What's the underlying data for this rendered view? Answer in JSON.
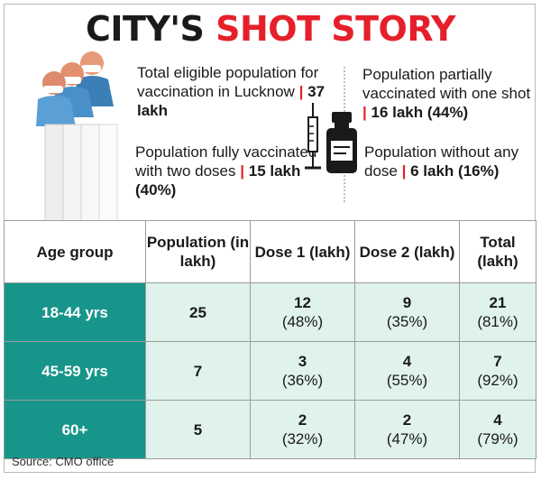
{
  "title": {
    "part1": "CITY'S ",
    "part2": "SHOT STORY"
  },
  "facts": {
    "eligible": {
      "text": "Total eligible population for vaccination in Lucknow",
      "value": "37 lakh"
    },
    "fully": {
      "text": "Population fully vaccinated with two doses",
      "value": "15 lakh (40%)"
    },
    "partial": {
      "text": "Population partially vaccinated with one shot",
      "value": "16 lakh (44%)"
    },
    "none": {
      "text": "Population without any dose",
      "value": "6 lakh (16%)"
    }
  },
  "table": {
    "headers": [
      "Age group",
      "Population (in lakh)",
      "Dose 1 (lakh)",
      "Dose 2 (lakh)",
      "Total (lakh)"
    ],
    "rows": [
      {
        "age": "18-44 yrs",
        "population": "25",
        "dose1": "12",
        "dose1_pct": "(48%)",
        "dose2": "9",
        "dose2_pct": "(35%)",
        "total": "21",
        "total_pct": "(81%)"
      },
      {
        "age": "45-59 yrs",
        "population": "7",
        "dose1": "3",
        "dose1_pct": "(36%)",
        "dose2": "4",
        "dose2_pct": "(55%)",
        "total": "7",
        "total_pct": "(92%)"
      },
      {
        "age": "60+",
        "population": "5",
        "dose1": "2",
        "dose1_pct": "(32%)",
        "dose2": "2",
        "dose2_pct": "(47%)",
        "total": "4",
        "total_pct": "(79%)"
      }
    ]
  },
  "source": "Source: CMO office",
  "colors": {
    "accent_red": "#e5202a",
    "teal": "#17958a",
    "light_teal": "#dff2ec"
  },
  "icons": [
    "people-queue-illustration",
    "syringe-icon",
    "vaccine-vial-icon"
  ]
}
